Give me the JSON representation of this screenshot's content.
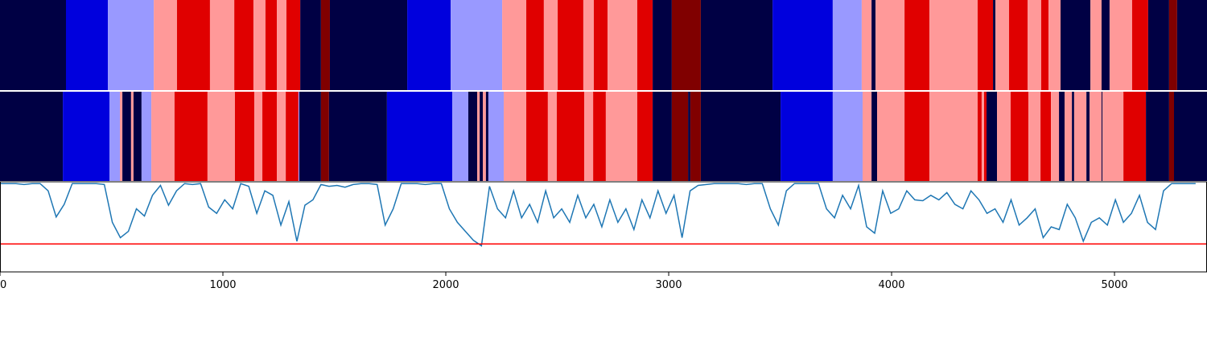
{
  "chart_data": [
    {
      "type": "barcode",
      "xlim": [
        0,
        5415
      ],
      "colors": [
        "#000044",
        "#0000dd",
        "#9999ff",
        "#ff9999",
        "#e00000",
        "#800000"
      ],
      "bounds": [
        0,
        296,
        484,
        690,
        794,
        942,
        1051,
        1137,
        1191,
        1242,
        1285,
        1347,
        1440,
        1480,
        1827,
        2022,
        2253,
        2361,
        2440,
        2502,
        2617,
        2664,
        2726,
        2859,
        2928,
        3014,
        3144,
        3466,
        3736,
        3866,
        3910,
        3928,
        4058,
        4170,
        4386,
        4455,
        4466,
        4527,
        4610,
        4671,
        4704,
        4758,
        4892,
        4942,
        4978,
        5079,
        5151,
        5245,
        5281,
        5415
      ],
      "classes": [
        0,
        1,
        2,
        3,
        4,
        3,
        4,
        3,
        4,
        3,
        4,
        0,
        5,
        0,
        1,
        2,
        3,
        4,
        3,
        4,
        3,
        4,
        3,
        4,
        0,
        5,
        0,
        1,
        2,
        3,
        0,
        3,
        4,
        3,
        4,
        0,
        3,
        4,
        3,
        4,
        3,
        0,
        3,
        0,
        3,
        4,
        0,
        5,
        0
      ]
    },
    {
      "type": "barcode",
      "xlim": [
        0,
        5415
      ],
      "colors": [
        "#000044",
        "#0000dd",
        "#9999ff",
        "#ff9999",
        "#e00000",
        "#800000"
      ],
      "bounds": [
        0,
        282,
        491,
        538,
        549,
        588,
        599,
        635,
        679,
        783,
        931,
        1054,
        1141,
        1177,
        1242,
        1282,
        1339,
        1343,
        1440,
        1476,
        1736,
        2029,
        2101,
        2141,
        2152,
        2166,
        2180,
        2191,
        2260,
        2361,
        2458,
        2498,
        2621,
        2661,
        2718,
        2859,
        2928,
        3014,
        3087,
        3097,
        3144,
        3502,
        3736,
        3870,
        3910,
        3935,
        4058,
        4170,
        4386,
        4404,
        4415,
        4426,
        4473,
        4534,
        4614,
        4668,
        4715,
        4751,
        4776,
        4809,
        4819,
        4874,
        4888,
        4942,
        4946,
        5040,
        5141,
        5245,
        5267,
        5415
      ],
      "classes": [
        0,
        1,
        2,
        3,
        0,
        3,
        0,
        2,
        3,
        4,
        3,
        4,
        3,
        4,
        3,
        4,
        2,
        0,
        5,
        0,
        1,
        2,
        0,
        3,
        0,
        3,
        0,
        2,
        3,
        4,
        3,
        4,
        3,
        4,
        3,
        4,
        0,
        5,
        0,
        5,
        0,
        1,
        2,
        3,
        0,
        3,
        4,
        3,
        4,
        3,
        4,
        0,
        3,
        4,
        3,
        4,
        3,
        0,
        3,
        0,
        3,
        0,
        3,
        0,
        3,
        4,
        0,
        5,
        0
      ]
    },
    {
      "type": "line",
      "xlim": [
        0,
        5415
      ],
      "ylim": [
        0,
        1
      ],
      "xticks": [
        0,
        1000,
        2000,
        3000,
        4000,
        5000
      ],
      "color": "#1f77b4",
      "threshold": 0.31,
      "threshold_color": "#ff0000",
      "x": [
        0,
        36,
        72,
        108,
        144,
        180,
        216,
        252,
        288,
        324,
        360,
        396,
        432,
        468,
        504,
        540,
        576,
        612,
        648,
        684,
        720,
        756,
        792,
        828,
        864,
        900,
        936,
        972,
        1008,
        1044,
        1080,
        1116,
        1152,
        1188,
        1224,
        1260,
        1296,
        1332,
        1368,
        1404,
        1440,
        1476,
        1512,
        1548,
        1584,
        1620,
        1656,
        1692,
        1728,
        1764,
        1800,
        1836,
        1872,
        1908,
        1944,
        1980,
        2016,
        2052,
        2088,
        2124,
        2160,
        2196,
        2232,
        2268,
        2304,
        2340,
        2376,
        2412,
        2448,
        2484,
        2520,
        2556,
        2592,
        2628,
        2664,
        2700,
        2736,
        2772,
        2808,
        2844,
        2880,
        2916,
        2952,
        2988,
        3024,
        3060,
        3096,
        3132,
        3168,
        3204,
        3240,
        3276,
        3312,
        3348,
        3384,
        3420,
        3456,
        3492,
        3528,
        3564,
        3600,
        3636,
        3672,
        3708,
        3744,
        3780,
        3816,
        3852,
        3888,
        3924,
        3960,
        3996,
        4032,
        4068,
        4104,
        4140,
        4176,
        4212,
        4248,
        4284,
        4320,
        4356,
        4392,
        4428,
        4464,
        4500,
        4536,
        4572,
        4608,
        4644,
        4680,
        4716,
        4752,
        4788,
        4824,
        4860,
        4896,
        4932,
        4968,
        5004,
        5040,
        5076,
        5112,
        5148,
        5184,
        5220,
        5256,
        5292,
        5328,
        5364
      ],
      "values": [
        0.98,
        0.98,
        0.98,
        0.97,
        0.98,
        0.98,
        0.9,
        0.61,
        0.75,
        0.98,
        0.98,
        0.98,
        0.98,
        0.97,
        0.55,
        0.38,
        0.45,
        0.7,
        0.62,
        0.85,
        0.96,
        0.74,
        0.9,
        0.98,
        0.97,
        0.98,
        0.72,
        0.65,
        0.8,
        0.7,
        0.98,
        0.95,
        0.65,
        0.9,
        0.85,
        0.52,
        0.78,
        0.34,
        0.74,
        0.8,
        0.97,
        0.95,
        0.96,
        0.94,
        0.97,
        0.98,
        0.98,
        0.97,
        0.52,
        0.7,
        0.98,
        0.98,
        0.98,
        0.97,
        0.98,
        0.98,
        0.7,
        0.55,
        0.45,
        0.35,
        0.29,
        0.95,
        0.7,
        0.6,
        0.9,
        0.6,
        0.75,
        0.55,
        0.9,
        0.6,
        0.7,
        0.55,
        0.85,
        0.6,
        0.75,
        0.5,
        0.8,
        0.55,
        0.7,
        0.47,
        0.8,
        0.6,
        0.9,
        0.65,
        0.85,
        0.38,
        0.9,
        0.96,
        0.97,
        0.98,
        0.98,
        0.98,
        0.98,
        0.97,
        0.98,
        0.98,
        0.7,
        0.52,
        0.9,
        0.98,
        0.98,
        0.98,
        0.98,
        0.7,
        0.6,
        0.85,
        0.7,
        0.96,
        0.5,
        0.43,
        0.9,
        0.65,
        0.7,
        0.9,
        0.8,
        0.79,
        0.85,
        0.8,
        0.88,
        0.75,
        0.7,
        0.9,
        0.8,
        0.65,
        0.7,
        0.55,
        0.8,
        0.52,
        0.6,
        0.7,
        0.38,
        0.5,
        0.47,
        0.75,
        0.6,
        0.34,
        0.55,
        0.6,
        0.52,
        0.8,
        0.55,
        0.65,
        0.85,
        0.55,
        0.47,
        0.9,
        0.98,
        0.98,
        0.98,
        0.98
      ]
    }
  ]
}
